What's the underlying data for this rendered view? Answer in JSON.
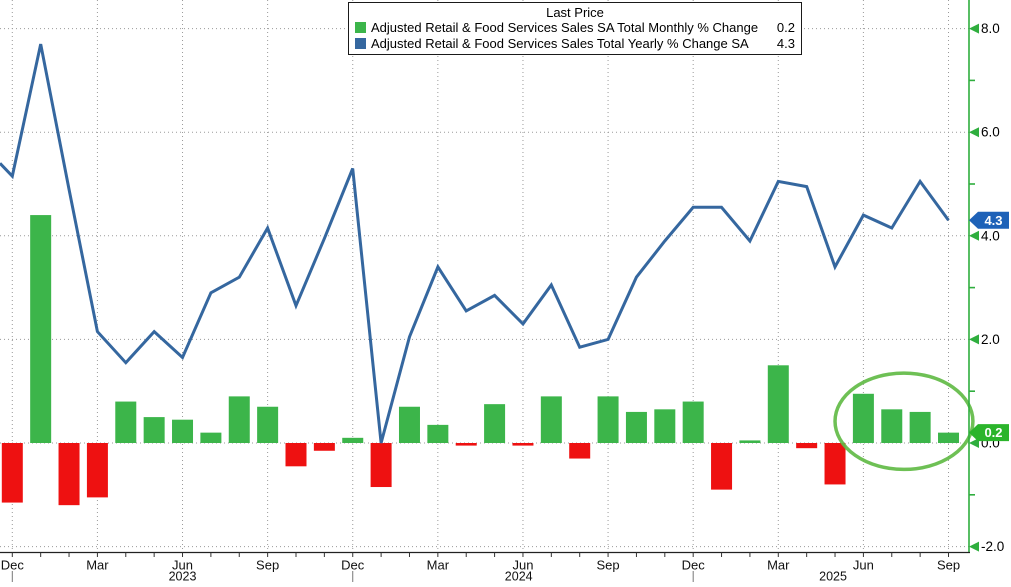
{
  "legend": {
    "title": "Last Price",
    "items": [
      {
        "label": "Adjusted Retail & Food Services Sales SA Total Monthly % Change",
        "value": "0.2",
        "swatch_color": "#3cb54a"
      },
      {
        "label": "Adjusted Retail & Food Services Sales Total Yearly % Change SA",
        "value": "4.3",
        "swatch_color": "#35679f"
      }
    ]
  },
  "chart_data": {
    "type": "combo",
    "x": [
      "Dec 2022",
      "Jan 2023",
      "Feb 2023",
      "Mar 2023",
      "Apr 2023",
      "May 2023",
      "Jun 2023",
      "Jul 2023",
      "Aug 2023",
      "Sep 2023",
      "Oct 2023",
      "Nov 2023",
      "Dec 2023",
      "Jan 2024",
      "Feb 2024",
      "Mar 2024",
      "Apr 2024",
      "May 2024",
      "Jun 2024",
      "Jul 2024",
      "Aug 2024",
      "Sep 2024",
      "Oct 2024",
      "Nov 2024",
      "Dec 2024",
      "Jan 2025",
      "Feb 2025",
      "Mar 2025",
      "Apr 2025",
      "May 2025",
      "Jun 2025",
      "Jul 2025",
      "Aug 2025",
      "Sep 2025"
    ],
    "series": [
      {
        "name": "Adjusted Retail & Food Services Sales SA Total Monthly % Change",
        "type": "bar",
        "unit": "%",
        "positive_color": "#3cb54a",
        "negative_color": "#ee1111",
        "last_price": 0.2,
        "values": [
          -1.15,
          4.4,
          -1.2,
          -1.05,
          0.8,
          0.5,
          0.45,
          0.2,
          0.9,
          0.7,
          -0.45,
          -0.15,
          0.1,
          -0.85,
          0.7,
          0.35,
          -0.05,
          0.75,
          -0.05,
          0.9,
          -0.3,
          0.9,
          0.6,
          0.65,
          0.8,
          -0.9,
          0.05,
          1.5,
          -0.1,
          -0.8,
          0.95,
          0.65,
          0.6,
          0.2
        ]
      },
      {
        "name": "Adjusted Retail & Food Services Sales Total Yearly % Change SA",
        "type": "line",
        "unit": "%",
        "color": "#35679f",
        "last_price": 4.3,
        "lead_in_value": 5.4,
        "values": [
          5.15,
          7.7,
          4.9,
          2.15,
          1.55,
          2.15,
          1.65,
          2.9,
          3.2,
          4.15,
          2.65,
          3.95,
          5.3,
          0.0,
          2.05,
          3.4,
          2.55,
          2.85,
          2.3,
          3.05,
          1.85,
          2.0,
          3.2,
          3.9,
          4.55,
          4.55,
          3.9,
          5.05,
          4.95,
          3.4,
          4.4,
          4.15,
          5.05,
          4.3
        ]
      }
    ],
    "y_axis": {
      "side": "right",
      "color": "#2fae3e",
      "tick_labels": [
        "8.0",
        "6.0",
        "4.0",
        "2.0",
        "0.0",
        "-2.0"
      ],
      "tick_values": [
        8,
        6,
        4,
        2,
        0,
        -2
      ],
      "minor_tick_values": [
        7,
        5,
        3,
        1,
        -1
      ],
      "last_price_badges": [
        {
          "text": "4.3",
          "value": 4.3,
          "bg": "#1e62b8"
        },
        {
          "text": "0.2",
          "value": 0.2,
          "bg": "#2bb42b"
        }
      ]
    },
    "x_axis": {
      "quarter_tick_labels": [
        {
          "label": "Dec",
          "month_index": 0
        },
        {
          "label": "Mar",
          "month_index": 3
        },
        {
          "label": "Jun",
          "month_index": 6
        },
        {
          "label": "Sep",
          "month_index": 9
        },
        {
          "label": "Dec",
          "month_index": 12
        },
        {
          "label": "Mar",
          "month_index": 15
        },
        {
          "label": "Jun",
          "month_index": 18
        },
        {
          "label": "Sep",
          "month_index": 21
        },
        {
          "label": "Dec",
          "month_index": 24
        },
        {
          "label": "Mar",
          "month_index": 27
        },
        {
          "label": "Jun",
          "month_index": 30
        },
        {
          "label": "Sep",
          "month_index": 33
        }
      ],
      "year_labels": [
        {
          "label": "2023",
          "month_index": 6
        },
        {
          "label": "2024",
          "month_index": 17.85
        },
        {
          "label": "2025",
          "month_index": 28.93
        }
      ],
      "year_separator_month_indices": [
        0,
        12,
        24
      ]
    },
    "annotation": {
      "type": "ellipse",
      "around": "Jun 2025 - Sep 2025",
      "color": "#62bb46",
      "cx_month_index": 31.43,
      "cy_value": 0.42,
      "rx_months": 2.43,
      "ry_units": 0.93
    },
    "grid": {
      "color": "#9a9a9a",
      "style": "dotted"
    },
    "ylim": [
      -2.6,
      8.55
    ]
  }
}
